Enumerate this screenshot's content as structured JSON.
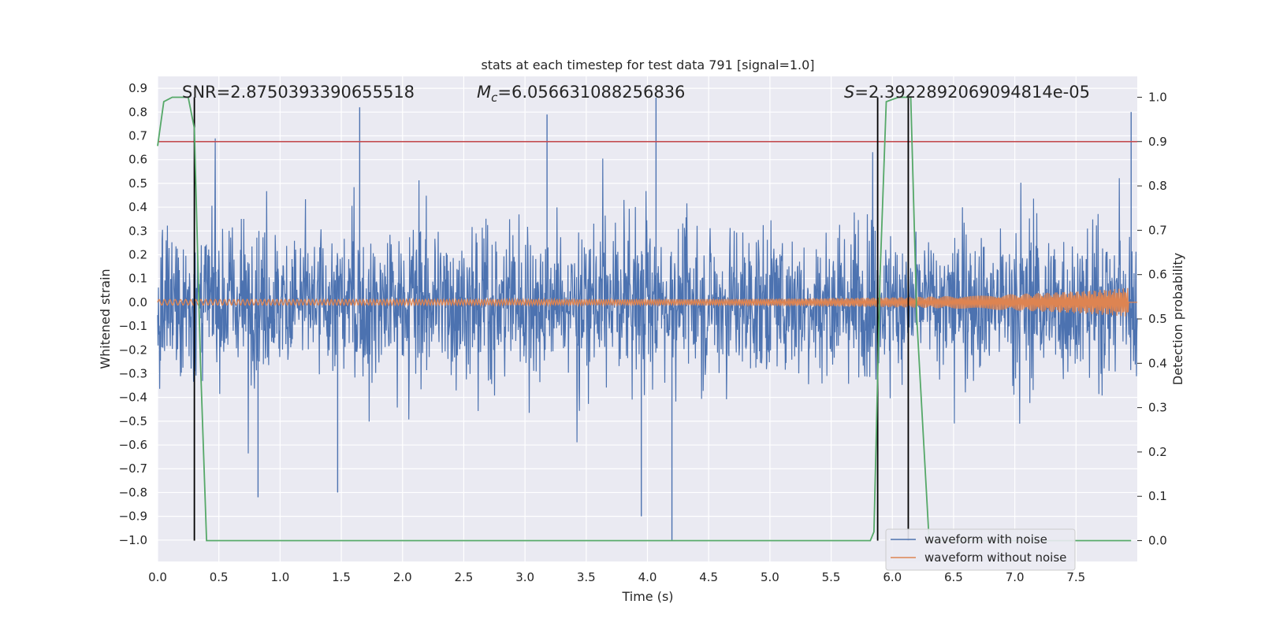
{
  "chart_data": {
    "type": "line",
    "title": "stats at each timestep for test data 791 [signal=1.0]",
    "xlabel": "Time (s)",
    "ylabel_left": "Whitened strain",
    "ylabel_right": "Detection probability",
    "xlim": [
      0.0,
      8.0
    ],
    "ylim_left": [
      -1.09,
      0.95
    ],
    "ylim_right": [
      -0.047,
      1.047
    ],
    "x_ticks": [
      "0.0",
      "0.5",
      "1.0",
      "1.5",
      "2.0",
      "2.5",
      "3.0",
      "3.5",
      "4.0",
      "4.5",
      "5.0",
      "5.5",
      "6.0",
      "6.5",
      "7.0",
      "7.5"
    ],
    "left_ticks": [
      "0.9",
      "0.8",
      "0.7",
      "0.6",
      "0.5",
      "0.4",
      "0.3",
      "0.2",
      "0.1",
      "0.0",
      "−0.1",
      "−0.2",
      "−0.3",
      "−0.4",
      "−0.5",
      "−0.6",
      "−0.7",
      "−0.8",
      "−0.9",
      "−1.0"
    ],
    "right_ticks": [
      "1.0",
      "0.9",
      "0.8",
      "0.7",
      "0.6",
      "0.5",
      "0.4",
      "0.3",
      "0.2",
      "0.1",
      "0.0"
    ],
    "grid": true,
    "legend_position": "lower-right",
    "annotations": {
      "snr": "SNR=2.8750393390655518",
      "mc_symbol": "M",
      "mc_subscript": "c",
      "mc_value": "=6.056631088256836",
      "s_symbol": "S",
      "s_value": "=2.3922892069094814e-05"
    },
    "threshold_probability": 0.9,
    "vertical_lines_time": [
      0.3,
      5.88,
      6.13
    ],
    "series": [
      {
        "name": "waveform with noise",
        "color": "#4c72b0",
        "axis": "left",
        "kind": "noise",
        "amplitude_core": 0.25,
        "extreme_values": [
          0.85,
          -1.0
        ]
      },
      {
        "name": "waveform without noise",
        "color": "#dd8452",
        "axis": "left",
        "kind": "chirp",
        "start_amplitude": 0.012,
        "end_amplitude": 0.06,
        "end_time": 7.93
      },
      {
        "color": "#55a868",
        "axis": "right",
        "kind": "probability",
        "x": [
          0.0,
          0.05,
          0.12,
          0.25,
          0.3,
          0.35,
          0.4,
          0.45,
          0.6,
          5.75,
          5.82,
          5.85,
          5.9,
          5.95,
          6.05,
          6.15,
          6.2,
          6.3,
          7.95
        ],
        "y": [
          0.89,
          0.99,
          1.0,
          1.0,
          0.93,
          0.4,
          0.0,
          0.0,
          0.0,
          0.0,
          0.0,
          0.02,
          0.6,
          0.99,
          1.0,
          1.0,
          0.5,
          0.0,
          0.0
        ]
      }
    ]
  }
}
